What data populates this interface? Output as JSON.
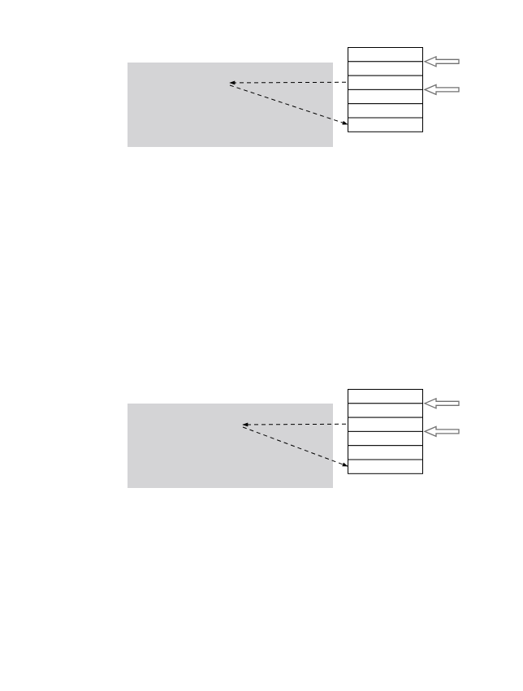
{
  "diagrams": [
    {
      "name": "upper-diagram",
      "panel_color": "#d4d4d6",
      "stack_rows": 6,
      "side_arrows_at_row_boundaries": [
        1,
        3
      ],
      "dashed_arrows": [
        {
          "from": "stack-row-2",
          "to": "panel-point"
        },
        {
          "from": "panel-point",
          "to": "stack-row-5"
        }
      ]
    },
    {
      "name": "lower-diagram",
      "panel_color": "#d4d4d6",
      "stack_rows": 6,
      "side_arrows_at_row_boundaries": [
        1,
        3
      ],
      "dashed_arrows": [
        {
          "from": "stack-row-2",
          "to": "panel-point"
        },
        {
          "from": "panel-point",
          "to": "stack-row-5"
        }
      ]
    }
  ]
}
